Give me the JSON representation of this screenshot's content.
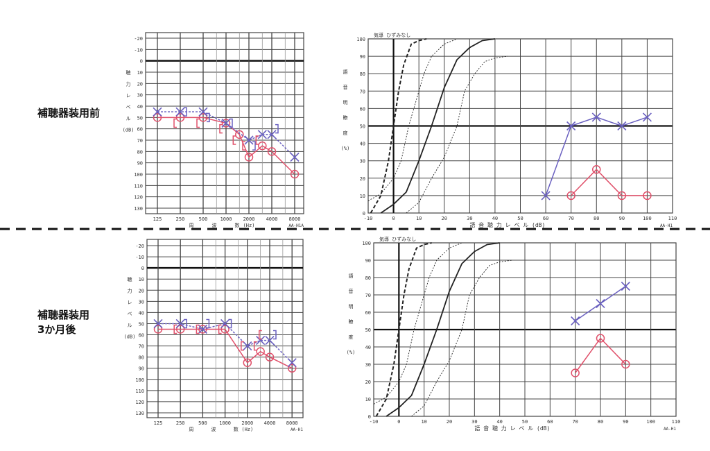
{
  "conditions": {
    "before": "補聴器装用前",
    "after_line1": "補聴器装用",
    "after_line2": "3か月後"
  },
  "colors": {
    "right": "#e0506a",
    "left": "#6a60c0",
    "grid": "#444444"
  },
  "chart_data": [
    {
      "type": "line",
      "kind": "audiogram",
      "panel": "before",
      "ylabel_chars": [
        "聴",
        "力",
        "レ",
        "ベ",
        "ル",
        "(dB)"
      ],
      "xlabel_chars": [
        "周",
        "波",
        "数",
        "(Hz)"
      ],
      "model": "AA-H1A",
      "x_ticks": [
        125,
        250,
        500,
        1000,
        2000,
        4000,
        8000
      ],
      "y_ticks": [
        -20,
        -10,
        0,
        10,
        20,
        30,
        40,
        50,
        60,
        70,
        80,
        90,
        100,
        110,
        120,
        130
      ],
      "ylim": [
        -20,
        130
      ],
      "series": [
        {
          "name": "right-air",
          "marker": "O",
          "x": [
            125,
            250,
            500,
            1000,
            1500,
            2000,
            3000,
            4000,
            8000
          ],
          "y": [
            50,
            50,
            50,
            55,
            65,
            85,
            75,
            80,
            100
          ]
        },
        {
          "name": "left-air",
          "marker": "X",
          "x": [
            125,
            250,
            500,
            1000,
            2000,
            3000,
            4000,
            8000
          ],
          "y": [
            45,
            45,
            45,
            55,
            70,
            65,
            65,
            85
          ]
        },
        {
          "name": "right-bone",
          "marker": "[",
          "x": [
            250,
            500,
            1000,
            1500,
            2000,
            3000
          ],
          "y": [
            55,
            55,
            60,
            70,
            75,
            70
          ]
        },
        {
          "name": "left-bone",
          "marker": "]",
          "x": [
            250,
            500,
            1000,
            2000,
            4000
          ],
          "y": [
            45,
            50,
            55,
            75,
            60
          ]
        }
      ]
    },
    {
      "type": "line",
      "kind": "speech",
      "panel": "before",
      "title": "気導 ひずみなし",
      "ylabel_chars": [
        "語",
        "音",
        "明",
        "瞭",
        "度",
        "(%)"
      ],
      "xlabel": "語 音 聴 力 レ ベ ル (dB)",
      "model": "AA-H1",
      "x_ticks": [
        -10,
        0,
        10,
        20,
        30,
        40,
        50,
        60,
        70,
        80,
        90,
        100,
        110
      ],
      "y_ticks": [
        0,
        10,
        20,
        30,
        40,
        50,
        60,
        70,
        80,
        90,
        100
      ],
      "xlim": [
        -10,
        110
      ],
      "ylim": [
        0,
        100
      ],
      "series": [
        {
          "name": "left",
          "marker": "X",
          "x": [
            60,
            70,
            80,
            90,
            100
          ],
          "y": [
            10,
            50,
            55,
            50,
            55
          ]
        },
        {
          "name": "right",
          "marker": "O",
          "x": [
            70,
            80,
            90,
            100
          ],
          "y": [
            10,
            25,
            10,
            10
          ]
        }
      ]
    },
    {
      "type": "line",
      "kind": "audiogram",
      "panel": "after",
      "ylabel_chars": [
        "聴",
        "力",
        "レ",
        "ベ",
        "ル",
        "(dB)"
      ],
      "xlabel_chars": [
        "周",
        "波",
        "数",
        "(Hz)"
      ],
      "model": "AA-H1",
      "x_ticks": [
        125,
        250,
        500,
        1000,
        2000,
        4000,
        8000
      ],
      "y_ticks": [
        -20,
        -10,
        0,
        10,
        20,
        30,
        40,
        50,
        60,
        70,
        80,
        90,
        100,
        110,
        120,
        130
      ],
      "ylim": [
        -20,
        130
      ],
      "series": [
        {
          "name": "right-air",
          "marker": "O",
          "x": [
            125,
            250,
            500,
            1000,
            2000,
            3000,
            4000,
            8000
          ],
          "y": [
            55,
            55,
            55,
            55,
            85,
            75,
            80,
            90
          ]
        },
        {
          "name": "left-air",
          "marker": "X",
          "x": [
            125,
            250,
            500,
            1000,
            2000,
            3000,
            4000,
            8000
          ],
          "y": [
            50,
            50,
            55,
            50,
            70,
            65,
            65,
            85
          ]
        },
        {
          "name": "right-bone",
          "marker": "[",
          "x": [
            250,
            500,
            1000,
            2000,
            3000,
            3500
          ],
          "y": [
            55,
            55,
            55,
            70,
            70,
            60
          ]
        },
        {
          "name": "left-bone",
          "marker": "]",
          "x": [
            250,
            500,
            1000,
            4000
          ],
          "y": [
            50,
            50,
            50,
            60
          ]
        }
      ]
    },
    {
      "type": "line",
      "kind": "speech",
      "panel": "after",
      "title": "気導 ひずみなし",
      "ylabel_chars": [
        "語",
        "音",
        "明",
        "瞭",
        "度",
        "(%)"
      ],
      "xlabel": "語 音 聴 力 レ ベ ル (dB)",
      "model": "AA-H1",
      "x_ticks": [
        -10,
        0,
        10,
        20,
        30,
        40,
        50,
        60,
        70,
        80,
        90,
        100,
        110
      ],
      "y_ticks": [
        0,
        10,
        20,
        30,
        40,
        50,
        60,
        70,
        80,
        90,
        100
      ],
      "xlim": [
        -10,
        110
      ],
      "ylim": [
        0,
        100
      ],
      "series": [
        {
          "name": "left",
          "marker": "X",
          "x": [
            70,
            80,
            90
          ],
          "y": [
            55,
            65,
            75
          ]
        },
        {
          "name": "right",
          "marker": "O",
          "x": [
            70,
            80,
            90
          ],
          "y": [
            25,
            45,
            30
          ]
        }
      ]
    }
  ],
  "reference_curves": {
    "bold_dashed": {
      "x": [
        -9,
        -5,
        -2,
        0,
        2,
        4,
        7,
        10,
        13
      ],
      "y": [
        0,
        10,
        30,
        50,
        70,
        85,
        97,
        99,
        100
      ]
    },
    "solid": {
      "x": [
        -5,
        0,
        5,
        10,
        15,
        20,
        25,
        30,
        35,
        40
      ],
      "y": [
        0,
        5,
        12,
        30,
        50,
        72,
        88,
        95,
        99,
        100
      ]
    },
    "dotted_left": {
      "x": [
        -10,
        -5,
        0,
        3,
        6,
        9,
        12,
        15,
        20,
        25
      ],
      "y": [
        7,
        11,
        20,
        30,
        50,
        65,
        80,
        90,
        97,
        100
      ]
    },
    "dotted_right": {
      "x": [
        5,
        10,
        15,
        20,
        25,
        28,
        32,
        36,
        40,
        45
      ],
      "y": [
        0,
        6,
        20,
        32,
        50,
        70,
        80,
        87,
        89,
        90
      ]
    }
  }
}
